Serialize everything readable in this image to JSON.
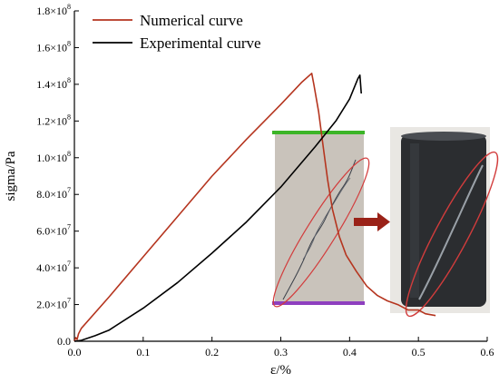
{
  "chart_data": {
    "type": "line",
    "xlabel": "ε/%",
    "ylabel": "sigma/Pa",
    "xlim": [
      0,
      0.6
    ],
    "ylim": [
      0,
      180000000
    ],
    "x_ticks": [
      0.0,
      0.1,
      0.2,
      0.3,
      0.4,
      0.5,
      0.6
    ],
    "x_tick_labels": [
      "0.0",
      "0.1",
      "0.2",
      "0.3",
      "0.4",
      "0.5",
      "0.6"
    ],
    "y_ticks": [
      0,
      20000000,
      40000000,
      60000000,
      80000000,
      100000000,
      120000000,
      140000000,
      160000000,
      180000000
    ],
    "y_tick_labels": [
      {
        "mant": "0.0",
        "exp": ""
      },
      {
        "mant": "2.0×10",
        "exp": "7"
      },
      {
        "mant": "4.0×10",
        "exp": "7"
      },
      {
        "mant": "6.0×10",
        "exp": "7"
      },
      {
        "mant": "8.0×10",
        "exp": "7"
      },
      {
        "mant": "1.0×10",
        "exp": "8"
      },
      {
        "mant": "1.2×10",
        "exp": "8"
      },
      {
        "mant": "1.4×10",
        "exp": "8"
      },
      {
        "mant": "1.6×10",
        "exp": "8"
      },
      {
        "mant": "1.8×10",
        "exp": "8"
      }
    ],
    "legend_position": "top-center",
    "grid": false,
    "series": [
      {
        "name": "Numerical curve",
        "color": "#b5351f",
        "points": [
          [
            0.0,
            0
          ],
          [
            0.002,
            2000000
          ],
          [
            0.004,
            1000000
          ],
          [
            0.006,
            4000000
          ],
          [
            0.01,
            7000000
          ],
          [
            0.05,
            24000000
          ],
          [
            0.1,
            46000000
          ],
          [
            0.15,
            68000000
          ],
          [
            0.2,
            90000000
          ],
          [
            0.25,
            110000000
          ],
          [
            0.3,
            129000000
          ],
          [
            0.33,
            141000000
          ],
          [
            0.345,
            146000000
          ],
          [
            0.348,
            140000000
          ],
          [
            0.355,
            125000000
          ],
          [
            0.362,
            105000000
          ],
          [
            0.368,
            88000000
          ],
          [
            0.375,
            72000000
          ],
          [
            0.385,
            57000000
          ],
          [
            0.395,
            47000000
          ],
          [
            0.41,
            38000000
          ],
          [
            0.425,
            30000000
          ],
          [
            0.44,
            25000000
          ],
          [
            0.455,
            22000000
          ],
          [
            0.47,
            20000000
          ],
          [
            0.485,
            17000000
          ],
          [
            0.5,
            17000000
          ],
          [
            0.51,
            15000000
          ],
          [
            0.525,
            14000000
          ]
        ]
      },
      {
        "name": "Experimental curve",
        "color": "#000000",
        "points": [
          [
            0.0,
            0
          ],
          [
            0.01,
            500000
          ],
          [
            0.03,
            3000000
          ],
          [
            0.05,
            6000000
          ],
          [
            0.1,
            18000000
          ],
          [
            0.15,
            32000000
          ],
          [
            0.2,
            48000000
          ],
          [
            0.25,
            65000000
          ],
          [
            0.3,
            84000000
          ],
          [
            0.35,
            106000000
          ],
          [
            0.38,
            120000000
          ],
          [
            0.4,
            132000000
          ],
          [
            0.412,
            143000000
          ],
          [
            0.415,
            145000000
          ],
          [
            0.417,
            135000000
          ]
        ]
      }
    ],
    "inset": {
      "band_color": "#c9c3bb",
      "top_line_color": "#3cb527",
      "bottom_line_color": "#8e3fbf",
      "arrow_color": "#9a2218",
      "ellipse_color": "#d23c3c",
      "specimen_color": "#2b2d30"
    }
  }
}
